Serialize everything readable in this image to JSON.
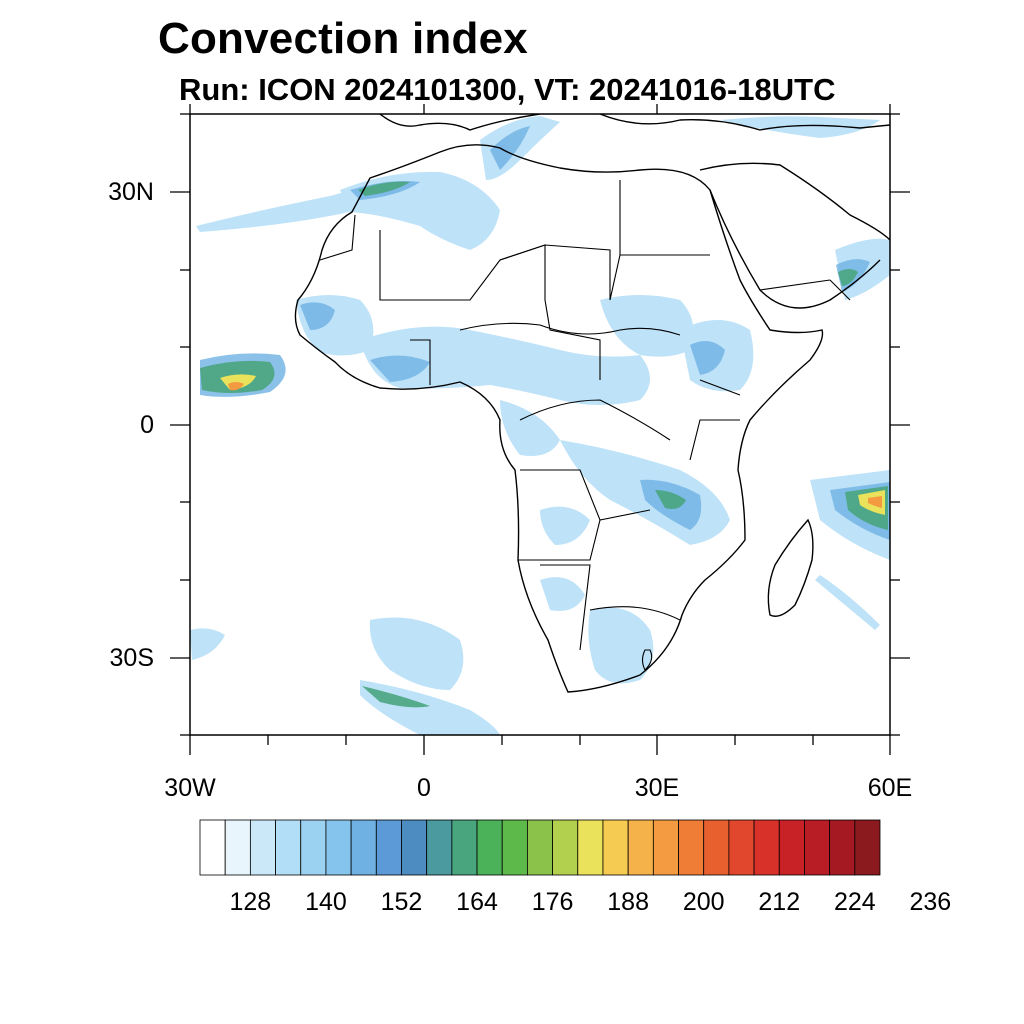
{
  "title": "Convection index",
  "subtitle": "Run: ICON 2024101300,  VT: 20241016-18UTC",
  "map": {
    "region": "Africa",
    "lon_range_deg": [
      -30,
      60
    ],
    "lat_range_deg": [
      -40,
      40
    ]
  },
  "axes": {
    "lat_labels": [
      "30N",
      "0",
      "30S"
    ],
    "lon_labels": [
      "30W",
      "0",
      "30E",
      "60E"
    ]
  },
  "colorbar": {
    "labels": [
      "128",
      "140",
      "152",
      "164",
      "176",
      "188",
      "200",
      "212",
      "224",
      "236"
    ],
    "colors": [
      "#ffffff",
      "#e8f5fc",
      "#cbe8f8",
      "#b3def7",
      "#9bd2f2",
      "#85c4ec",
      "#6fb1e3",
      "#5b9ad7",
      "#4c8cc0",
      "#4a9aa0",
      "#49a57e",
      "#4bb25a",
      "#5db94a",
      "#8ac24a",
      "#b3cf4e",
      "#e9e25a",
      "#f6cb52",
      "#f6b24a",
      "#f49a40",
      "#ef7d35",
      "#e9602f",
      "#e1472c",
      "#d83129",
      "#c82227",
      "#b81c25",
      "#a51a22",
      "#8a1a1e"
    ]
  }
}
